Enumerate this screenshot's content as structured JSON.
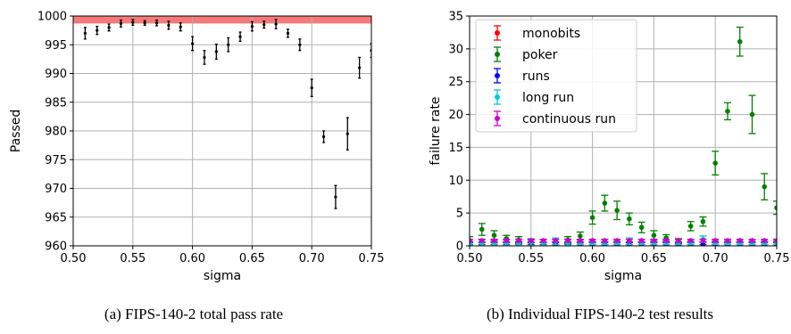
{
  "chart_data": [
    {
      "type": "scatter",
      "xlabel": "sigma",
      "ylabel": "Passed",
      "xlim": [
        0.5,
        0.75
      ],
      "ylim": [
        960,
        1000
      ],
      "xticks": [
        "0.50",
        "0.55",
        "0.60",
        "0.65",
        "0.70",
        "0.75"
      ],
      "yticks": [
        "960",
        "965",
        "970",
        "975",
        "980",
        "985",
        "990",
        "995",
        "1000"
      ],
      "grid": true,
      "reference_band": {
        "y0": 998.7,
        "y1": 1000,
        "color": "#f47a7a"
      },
      "series": [
        {
          "color": "#000000",
          "x": [
            0.51,
            0.52,
            0.53,
            0.54,
            0.55,
            0.56,
            0.57,
            0.58,
            0.59,
            0.6,
            0.61,
            0.62,
            0.63,
            0.64,
            0.65,
            0.66,
            0.67,
            0.68,
            0.69,
            0.7,
            0.71,
            0.72,
            0.73,
            0.74,
            0.75
          ],
          "y": [
            997.0,
            997.5,
            998.0,
            998.7,
            998.9,
            998.8,
            998.8,
            998.4,
            998.1,
            995.2,
            992.8,
            993.8,
            995.0,
            996.4,
            998.2,
            998.5,
            998.6,
            997.0,
            995.0,
            987.5,
            979.0,
            968.5,
            979.5,
            991.0,
            994.0
          ],
          "err": [
            1.0,
            0.7,
            0.6,
            0.6,
            0.5,
            0.4,
            0.5,
            0.7,
            0.7,
            1.2,
            1.2,
            1.3,
            1.2,
            0.8,
            0.8,
            0.6,
            0.8,
            0.7,
            1.0,
            1.5,
            1.0,
            2.0,
            2.8,
            1.8,
            1.2
          ]
        }
      ]
    },
    {
      "type": "scatter",
      "xlabel": "sigma",
      "ylabel": "failure rate",
      "xlim": [
        0.5,
        0.75
      ],
      "ylim": [
        0,
        35
      ],
      "xticks": [
        "0.50",
        "0.55",
        "0.60",
        "0.65",
        "0.70",
        "0.75"
      ],
      "yticks": [
        "0",
        "5",
        "10",
        "15",
        "20",
        "25",
        "30",
        "35"
      ],
      "grid": true,
      "legend_position": "top-left",
      "series": [
        {
          "name": "monobits",
          "color": "#ff0000",
          "x": [
            0.5,
            0.51,
            0.52,
            0.53,
            0.54,
            0.55,
            0.56,
            0.57,
            0.58,
            0.59,
            0.6,
            0.61,
            0.62,
            0.63,
            0.64,
            0.65,
            0.66,
            0.67,
            0.68,
            0.69,
            0.7,
            0.71,
            0.72,
            0.73,
            0.74,
            0.75
          ],
          "y": [
            0,
            0,
            0,
            0,
            0,
            0,
            0,
            0,
            0,
            0,
            0,
            0,
            0,
            0,
            0,
            0,
            0,
            0,
            0,
            0,
            0,
            0,
            0,
            0,
            0,
            0
          ],
          "err": [
            0.2,
            0.2,
            0.2,
            0.2,
            0.2,
            0.2,
            0.2,
            0.2,
            0.2,
            0.2,
            0.2,
            0.2,
            0.2,
            0.2,
            0.2,
            0.2,
            0.2,
            0.2,
            0.2,
            0.2,
            0.2,
            0.2,
            0.2,
            0.2,
            0.2,
            0.2
          ]
        },
        {
          "name": "poker",
          "color": "#008000",
          "x": [
            0.5,
            0.51,
            0.52,
            0.53,
            0.54,
            0.55,
            0.56,
            0.57,
            0.58,
            0.59,
            0.6,
            0.61,
            0.62,
            0.63,
            0.64,
            0.65,
            0.66,
            0.67,
            0.68,
            0.69,
            0.7,
            0.71,
            0.72,
            0.73,
            0.74,
            0.75
          ],
          "y": [
            0.8,
            2.5,
            1.6,
            1.1,
            0.9,
            0.5,
            0.5,
            0.6,
            0.9,
            1.5,
            4.3,
            6.5,
            5.4,
            4.1,
            2.8,
            1.6,
            1.2,
            0.7,
            3.0,
            3.7,
            12.6,
            20.5,
            31.1,
            20.0,
            9.0,
            5.8
          ],
          "err": [
            0.6,
            0.9,
            0.7,
            0.5,
            0.5,
            0.4,
            0.4,
            0.4,
            0.5,
            0.6,
            1.0,
            1.2,
            1.4,
            0.9,
            0.8,
            0.7,
            0.5,
            0.4,
            0.7,
            0.7,
            1.8,
            1.3,
            2.2,
            2.9,
            2.0,
            1.0
          ]
        },
        {
          "name": "runs",
          "color": "#0000ff",
          "x": [
            0.5,
            0.51,
            0.52,
            0.53,
            0.54,
            0.55,
            0.56,
            0.57,
            0.58,
            0.59,
            0.6,
            0.61,
            0.62,
            0.63,
            0.64,
            0.65,
            0.66,
            0.67,
            0.68,
            0.69,
            0.7,
            0.71,
            0.72,
            0.73,
            0.74,
            0.75
          ],
          "y": [
            0.2,
            0.2,
            0.2,
            0.2,
            0.2,
            0.2,
            0.2,
            0.2,
            0.2,
            0.2,
            0.2,
            0.2,
            0.2,
            0.2,
            0.2,
            0.2,
            0.2,
            0.2,
            0.2,
            0.2,
            0.2,
            0.2,
            0.2,
            0.2,
            0.2,
            0.2
          ],
          "err": [
            0.3,
            0.3,
            0.3,
            0.3,
            0.3,
            0.3,
            0.3,
            0.3,
            0.3,
            0.3,
            0.3,
            0.3,
            0.3,
            0.3,
            0.3,
            0.3,
            0.3,
            0.3,
            0.3,
            0.3,
            0.3,
            0.3,
            0.3,
            0.3,
            0.3,
            0.3
          ]
        },
        {
          "name": "long run",
          "color": "#00cccc",
          "x": [
            0.5,
            0.51,
            0.52,
            0.53,
            0.54,
            0.55,
            0.56,
            0.57,
            0.58,
            0.59,
            0.6,
            0.61,
            0.62,
            0.63,
            0.64,
            0.65,
            0.66,
            0.67,
            0.68,
            0.69,
            0.7,
            0.71,
            0.72,
            0.73,
            0.74,
            0.75
          ],
          "y": [
            0.4,
            0.5,
            0.4,
            0.5,
            0.4,
            0.6,
            0.5,
            0.7,
            0.5,
            0.6,
            0.5,
            0.6,
            0.5,
            0.7,
            0.6,
            0.5,
            0.5,
            0.6,
            0.5,
            1.0,
            0.5,
            0.5,
            0.5,
            0.5,
            0.5,
            0.5
          ],
          "err": [
            0.3,
            0.4,
            0.3,
            0.4,
            0.3,
            0.5,
            0.4,
            0.5,
            0.4,
            0.4,
            0.3,
            0.4,
            0.3,
            0.5,
            0.4,
            0.3,
            0.3,
            0.4,
            0.3,
            0.5,
            0.3,
            0.3,
            0.3,
            0.3,
            0.3,
            0.3
          ]
        },
        {
          "name": "continuous run",
          "color": "#cc00cc",
          "x": [
            0.5,
            0.51,
            0.52,
            0.53,
            0.54,
            0.55,
            0.56,
            0.57,
            0.58,
            0.59,
            0.6,
            0.61,
            0.62,
            0.63,
            0.64,
            0.65,
            0.66,
            0.67,
            0.68,
            0.69,
            0.7,
            0.71,
            0.72,
            0.73,
            0.74,
            0.75
          ],
          "y": [
            0.8,
            0.8,
            0.8,
            0.8,
            0.8,
            0.8,
            0.8,
            0.8,
            0.8,
            0.8,
            0.8,
            0.8,
            0.8,
            0.8,
            0.8,
            0.8,
            0.8,
            0.8,
            0.8,
            0.8,
            0.8,
            0.8,
            0.8,
            0.8,
            0.8,
            0.8
          ],
          "err": [
            0.2,
            0.2,
            0.2,
            0.2,
            0.2,
            0.2,
            0.2,
            0.2,
            0.2,
            0.2,
            0.2,
            0.2,
            0.2,
            0.2,
            0.2,
            0.2,
            0.2,
            0.2,
            0.2,
            0.2,
            0.2,
            0.2,
            0.2,
            0.2,
            0.2,
            0.2
          ]
        }
      ]
    }
  ],
  "captions": {
    "left": "(a) FIPS-140-2 total pass rate",
    "right": "(b) Individual FIPS-140-2 test results"
  }
}
